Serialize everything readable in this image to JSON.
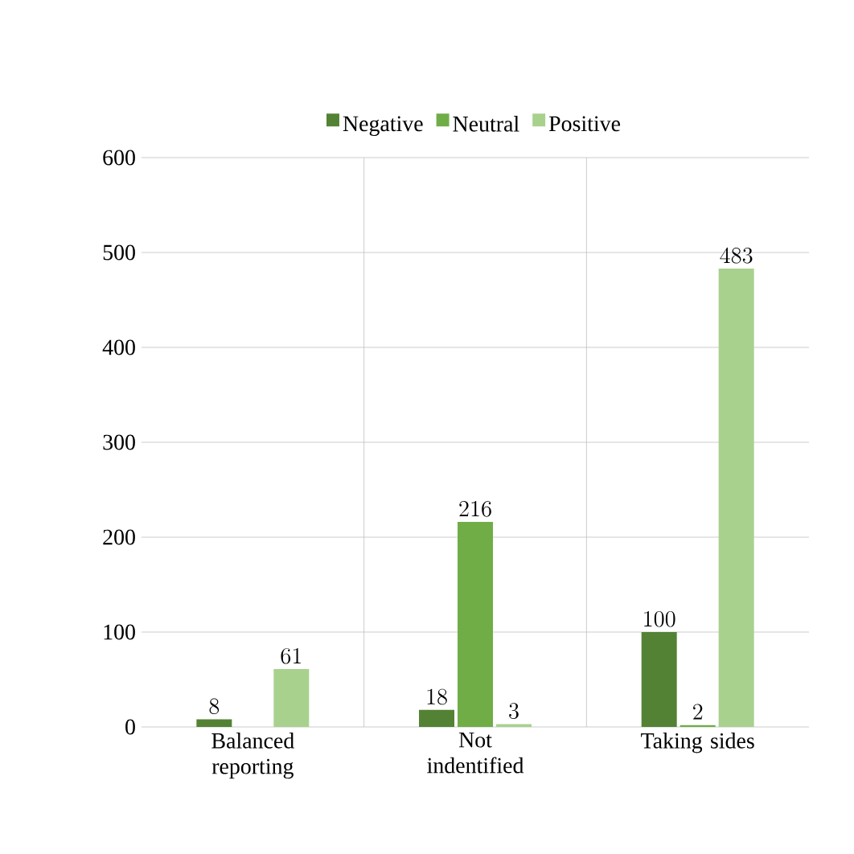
{
  "chart_data": {
    "type": "bar",
    "categories": [
      "Balanced reporting",
      "Not indentified",
      "Taking sides"
    ],
    "series": [
      {
        "name": "Negative",
        "color": "#548235",
        "values": [
          8,
          18,
          100
        ]
      },
      {
        "name": "Neutral",
        "color": "#70ad47",
        "values": [
          null,
          216,
          2
        ]
      },
      {
        "name": "Positive",
        "color": "#a9d18e",
        "values": [
          61,
          3,
          483
        ]
      }
    ],
    "ylim": [
      0,
      600
    ],
    "yticks": [
      0,
      100,
      200,
      300,
      400,
      500,
      600
    ],
    "grid": "y",
    "legend": "top",
    "data_labels": true
  }
}
